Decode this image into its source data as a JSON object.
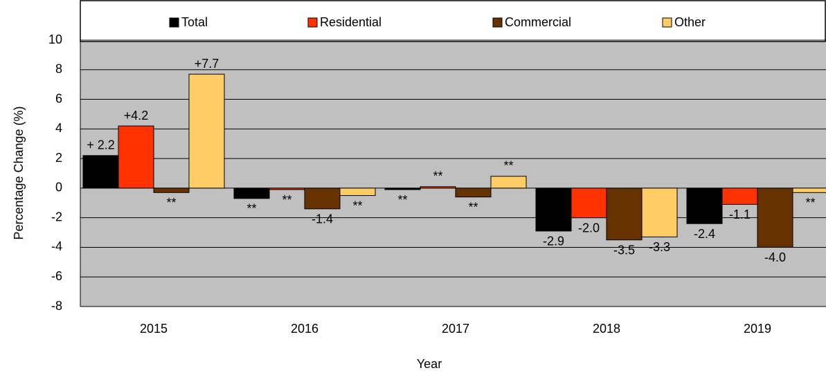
{
  "chart_data": {
    "type": "bar",
    "x_label": "Year",
    "y_label": "Percentage Change (%)",
    "categories": [
      "2015",
      "2016",
      "2017",
      "2018",
      "2019"
    ],
    "series": [
      {
        "name": "Total",
        "color": "#000000",
        "values": [
          2.2,
          -0.7,
          -0.1,
          -2.9,
          -2.4
        ],
        "value_labels": [
          "+ 2.2",
          "**",
          "**",
          "-2.9",
          "-2.4"
        ]
      },
      {
        "name": "Residential",
        "color": "#ff3300",
        "values": [
          4.2,
          -0.1,
          0.1,
          -2.0,
          -1.1
        ],
        "value_labels": [
          "+4.2",
          "**",
          "**",
          "-2.0",
          "-1.1"
        ]
      },
      {
        "name": "Commercial",
        "color": "#663300",
        "values": [
          -0.3,
          -1.4,
          -0.6,
          -3.5,
          -4.0
        ],
        "value_labels": [
          "**",
          "-1.4",
          "**",
          "-3.5",
          "-4.0"
        ]
      },
      {
        "name": "Other",
        "color": "#ffcc66",
        "values": [
          7.7,
          -0.5,
          0.8,
          -3.3,
          -0.3
        ],
        "value_labels": [
          "+7.7",
          "**",
          "**",
          "-3.3",
          "**"
        ]
      }
    ],
    "ylim": [
      -8,
      10
    ],
    "yticks": [
      -8,
      -6,
      -4,
      -2,
      0,
      2,
      4,
      6,
      8,
      10
    ],
    "grid": true,
    "legend": "top"
  }
}
